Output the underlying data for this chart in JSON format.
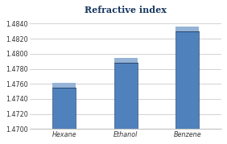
{
  "categories": [
    "Hexane",
    "Ethanol",
    "Benzene"
  ],
  "values": [
    1.4755,
    1.4788,
    1.483
  ],
  "bar_color_face": "#4F81BD",
  "bar_color_dark": "#17375E",
  "bar_color_light": "#95B3D7",
  "title": "Refractive index",
  "title_color": "#17375E",
  "title_fontsize": 8,
  "tick_fontsize": 5.8,
  "label_fontsize": 6.0,
  "ylim_min": 1.47,
  "ylim_max": 1.485,
  "yticks": [
    1.47,
    1.472,
    1.474,
    1.476,
    1.478,
    1.48,
    1.482,
    1.484
  ],
  "bg_color": "#FFFFFF",
  "plot_bg_color": "#FFFFFF",
  "grid_color": "#C0C0C0",
  "bar_width": 0.38,
  "bar_spacing": 1.0
}
